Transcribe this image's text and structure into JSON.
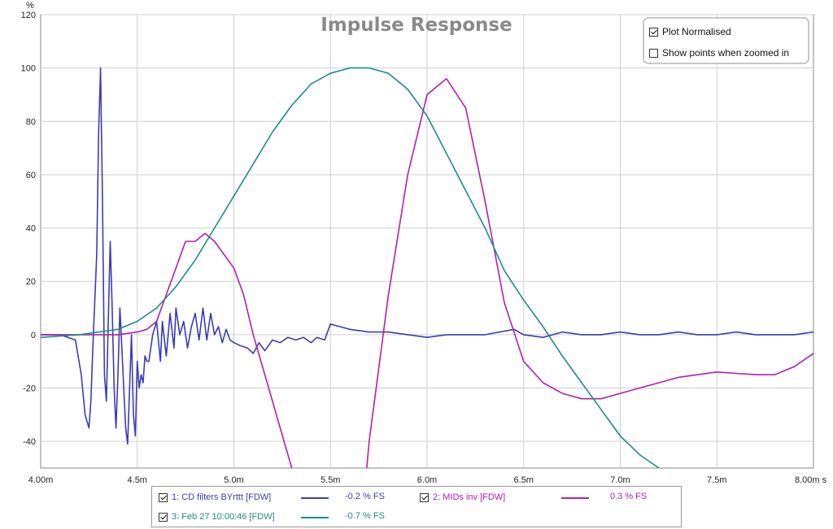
{
  "chart_data": {
    "type": "line",
    "title": "Impulse Response",
    "y_unit": "%",
    "x_unit": "s",
    "xlim": [
      0.004,
      0.008
    ],
    "ylim": [
      -50,
      120
    ],
    "grid": true,
    "x_ticks": [
      "4.00m",
      "4.5m",
      "5.0m",
      "5.5m",
      "6.0m",
      "6.5m",
      "7.0m",
      "7.5m",
      "8.00m s"
    ],
    "x_tick_values": [
      0.004,
      0.0045,
      0.005,
      0.0055,
      0.006,
      0.0065,
      0.007,
      0.0075,
      0.008
    ],
    "y_ticks": [
      "120",
      "100",
      "80",
      "60",
      "40",
      "20",
      "0",
      "-20",
      "-40"
    ],
    "y_tick_values": [
      120,
      100,
      80,
      60,
      40,
      20,
      0,
      -20,
      -40
    ],
    "series": [
      {
        "name": "1: CD filters BYrttt [FDW]",
        "value_label": "-0.2 % FS",
        "color": "#3c3cb4",
        "x": [
          0.004,
          0.0041,
          0.00418,
          0.00421,
          0.00423,
          0.00425,
          0.00426,
          0.00427,
          0.00429,
          0.0043,
          0.00431,
          0.00432,
          0.00433,
          0.00434,
          0.00435,
          0.00436,
          0.00437,
          0.00438,
          0.00439,
          0.0044,
          0.00441,
          0.00442,
          0.00443,
          0.00444,
          0.00445,
          0.00446,
          0.00447,
          0.00448,
          0.00449,
          0.0045,
          0.00451,
          0.00452,
          0.00453,
          0.00454,
          0.00455,
          0.00456,
          0.00458,
          0.0046,
          0.00462,
          0.00463,
          0.00465,
          0.00467,
          0.00469,
          0.0047,
          0.00472,
          0.00474,
          0.00476,
          0.00478,
          0.0048,
          0.00482,
          0.00484,
          0.00486,
          0.00488,
          0.0049,
          0.00492,
          0.00494,
          0.00496,
          0.00498,
          0.005,
          0.00503,
          0.00507,
          0.0051,
          0.00513,
          0.00516,
          0.0052,
          0.00524,
          0.00528,
          0.00532,
          0.00536,
          0.0054,
          0.00543,
          0.00547,
          0.0055,
          0.00555,
          0.0056,
          0.0057,
          0.0058,
          0.0059,
          0.006,
          0.0061,
          0.0062,
          0.0063,
          0.00645,
          0.0065,
          0.0066,
          0.0067,
          0.0068,
          0.0069,
          0.007,
          0.0071,
          0.0072,
          0.0073,
          0.0074,
          0.0075,
          0.0076,
          0.0077,
          0.0078,
          0.0079,
          0.008
        ],
        "y": [
          0,
          0,
          -2,
          -15,
          -30,
          -35,
          -25,
          -5,
          30,
          75,
          100,
          50,
          -15,
          -25,
          5,
          35,
          10,
          -20,
          -35,
          -15,
          10,
          -5,
          -20,
          -35,
          -41,
          -20,
          0,
          -30,
          -38,
          -10,
          -20,
          -15,
          -18,
          -8,
          -10,
          -10,
          0,
          5,
          -10,
          5,
          -8,
          8,
          -5,
          10,
          0,
          5,
          -5,
          3,
          8,
          -2,
          10,
          -2,
          8,
          0,
          3,
          -3,
          2,
          -2,
          -3,
          -4,
          -5,
          -7,
          -3,
          -6,
          -2,
          -3,
          -1,
          -2,
          -1,
          -3,
          -1,
          -2,
          4,
          3,
          2,
          1,
          1,
          0,
          -1,
          0,
          0,
          0,
          2,
          0,
          -1,
          1,
          0,
          0,
          1,
          0,
          0,
          1,
          0,
          0,
          1,
          0,
          0,
          0,
          1
        ]
      },
      {
        "name": "2: MIDs inv [FDW]",
        "value_label": "0.3 % FS",
        "color": "#b020b0",
        "x": [
          0.004,
          0.0042,
          0.0043,
          0.0044,
          0.0045,
          0.00455,
          0.0046,
          0.00465,
          0.0047,
          0.00475,
          0.0048,
          0.00485,
          0.0049,
          0.00495,
          0.005,
          0.00505,
          0.0051,
          0.0052,
          0.0053,
          0.0054,
          0.00565,
          0.0057,
          0.0058,
          0.0059,
          0.006,
          0.0061,
          0.0062,
          0.0063,
          0.0064,
          0.0065,
          0.0066,
          0.0067,
          0.0068,
          0.0069,
          0.007,
          0.0071,
          0.0072,
          0.0073,
          0.0074,
          0.0075,
          0.0076,
          0.0077,
          0.0078,
          0.0079,
          0.008
        ],
        "y": [
          0,
          0,
          0,
          0,
          1,
          2,
          5,
          15,
          25,
          35,
          35,
          38,
          35,
          30,
          25,
          15,
          0,
          -25,
          -50,
          -80,
          -80,
          -40,
          15,
          60,
          90,
          96,
          85,
          50,
          12,
          -10,
          -18,
          -22,
          -24,
          -24,
          -22,
          -20,
          -18,
          -16,
          -15,
          -14,
          -14.5,
          -15,
          -15,
          -12,
          -7
        ]
      },
      {
        "name": "3: Feb 27 10:00:46 [FDW]",
        "value_label": "-0.7 % FS",
        "color": "#1f8a8a",
        "x": [
          0.004,
          0.0042,
          0.0043,
          0.0044,
          0.0045,
          0.0046,
          0.0047,
          0.0048,
          0.0049,
          0.005,
          0.0051,
          0.0052,
          0.0053,
          0.0054,
          0.0055,
          0.0056,
          0.0057,
          0.0058,
          0.0059,
          0.006,
          0.0061,
          0.0062,
          0.0063,
          0.0064,
          0.0065,
          0.0066,
          0.0067,
          0.0068,
          0.0069,
          0.007,
          0.0071,
          0.0072,
          0.0073
        ],
        "y": [
          -1,
          0,
          1,
          2,
          5,
          10,
          18,
          28,
          40,
          52,
          64,
          76,
          86,
          94,
          98,
          100,
          100,
          98,
          92,
          82,
          68,
          54,
          40,
          24,
          13,
          3,
          -8,
          -18,
          -28,
          -38,
          -45,
          -50,
          -55
        ]
      }
    ]
  },
  "options": {
    "plot_normalised": {
      "label": "Plot Normalised",
      "checked": true
    },
    "show_points": {
      "label": "Show points when zoomed in",
      "checked": false
    }
  }
}
